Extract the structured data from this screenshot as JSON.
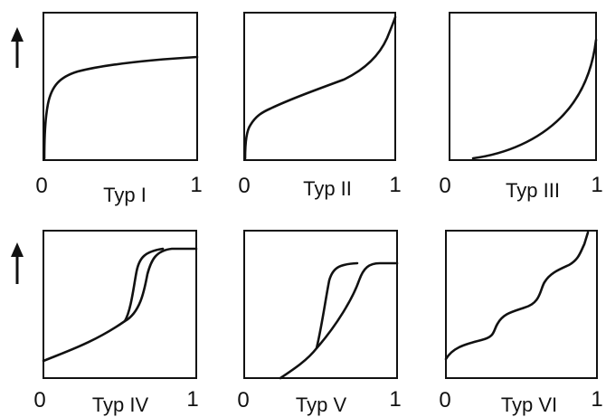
{
  "panels": [
    {
      "caption": "Typ I",
      "x_min_label": "0",
      "x_max_label": "1"
    },
    {
      "caption": "Typ II",
      "x_min_label": "0",
      "x_max_label": "1"
    },
    {
      "caption": "Typ III",
      "x_min_label": "0",
      "x_max_label": "1"
    },
    {
      "caption": "Typ IV",
      "x_min_label": "0",
      "x_max_label": "1"
    },
    {
      "caption": "Typ V",
      "x_min_label": "0",
      "x_max_label": "1"
    },
    {
      "caption": "Typ VI",
      "x_min_label": "0",
      "x_max_label": "1"
    }
  ],
  "y_arrow_icon": "up-arrow-icon",
  "line_color": "#111111"
}
